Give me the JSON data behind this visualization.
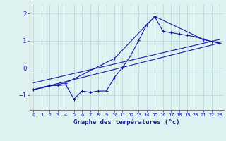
{
  "xlabel": "Graphe des températures (°c)",
  "bg_color": "#dff2f2",
  "grid_color": "#b8dada",
  "line_color": "#1a1aaa",
  "xlim": [
    -0.5,
    23.5
  ],
  "ylim": [
    -1.55,
    2.35
  ],
  "yticks": [
    -1,
    0,
    1,
    2
  ],
  "xticks": [
    0,
    1,
    2,
    3,
    4,
    5,
    6,
    7,
    8,
    9,
    10,
    11,
    12,
    13,
    14,
    15,
    16,
    17,
    18,
    19,
    20,
    21,
    22,
    23
  ],
  "series1_x": [
    0,
    1,
    2,
    3,
    4,
    5,
    6,
    7,
    8,
    9,
    10,
    11,
    12,
    13,
    14,
    15,
    16,
    17,
    18,
    19,
    20,
    21,
    22,
    23
  ],
  "series1_y": [
    -0.8,
    -0.72,
    -0.65,
    -0.65,
    -0.62,
    -1.15,
    -0.85,
    -0.9,
    -0.85,
    -0.85,
    -0.35,
    0.02,
    0.45,
    1.02,
    1.6,
    1.88,
    1.35,
    1.3,
    1.25,
    1.2,
    1.15,
    1.05,
    0.97,
    0.92
  ],
  "series2_x": [
    0,
    4,
    10,
    14,
    15,
    21,
    23
  ],
  "series2_y": [
    -0.8,
    -0.55,
    0.35,
    1.6,
    1.9,
    1.05,
    0.92
  ],
  "series3_x": [
    0,
    23
  ],
  "series3_y": [
    -0.8,
    0.92
  ],
  "series4_x": [
    0,
    23
  ],
  "series4_y": [
    -0.55,
    1.05
  ]
}
